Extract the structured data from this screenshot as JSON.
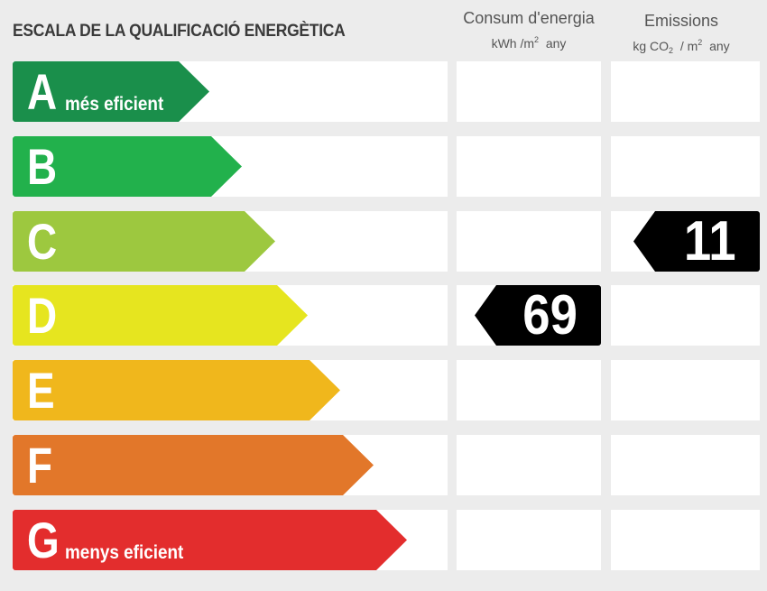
{
  "title": "ESCALA DE LA QUALIFICACIÓ ENERGÈTICA",
  "columns": {
    "energy": {
      "title": "Consum d'energia",
      "unit_prefix": "kWh /m",
      "unit_sup": "2",
      "unit_suffix": "any"
    },
    "emissions": {
      "title": "Emissions",
      "unit_prefix": "kg CO",
      "unit_sub": "2",
      "unit_mid": " / m",
      "unit_sup": "2",
      "unit_suffix": "any"
    }
  },
  "classes": [
    {
      "letter": "A",
      "note": "més eficient",
      "color": "#1a8f4b"
    },
    {
      "letter": "B",
      "note": "",
      "color": "#22b14c"
    },
    {
      "letter": "C",
      "note": "",
      "color": "#9dc83f"
    },
    {
      "letter": "D",
      "note": "",
      "color": "#e6e51f"
    },
    {
      "letter": "E",
      "note": "",
      "color": "#f0b71c"
    },
    {
      "letter": "F",
      "note": "",
      "color": "#e2772a"
    },
    {
      "letter": "G",
      "note": "menys eficient",
      "color": "#e32d2d"
    }
  ],
  "rating": {
    "energy": {
      "class": "D",
      "value": "69"
    },
    "emissions": {
      "class": "C",
      "value": "11"
    }
  }
}
